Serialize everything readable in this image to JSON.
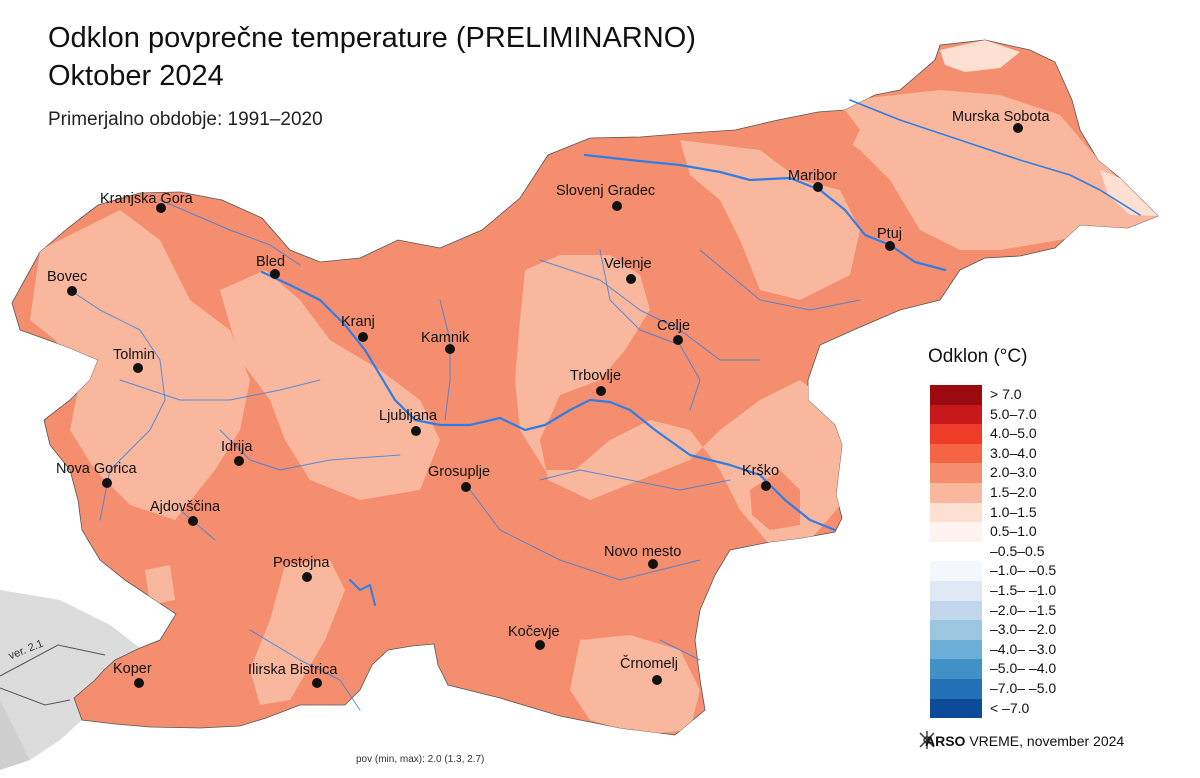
{
  "title": {
    "line1": "Odklon povprečne temperature (PRELIMINARNO)",
    "line2": "Oktober 2024",
    "subtitle": "Primerjalno obdobje: 1991–2020"
  },
  "cities": [
    {
      "name": "Murska Sobota"
    },
    {
      "name": "Maribor"
    },
    {
      "name": "Ptuj"
    },
    {
      "name": "Slovenj Gradec"
    },
    {
      "name": "Velenje"
    },
    {
      "name": "Celje"
    },
    {
      "name": "Trbovlje"
    },
    {
      "name": "Krško"
    },
    {
      "name": "Novo mesto"
    },
    {
      "name": "Črnomelj"
    },
    {
      "name": "Kočevje"
    },
    {
      "name": "Grosuplje"
    },
    {
      "name": "Ljubljana"
    },
    {
      "name": "Kamnik"
    },
    {
      "name": "Kranj"
    },
    {
      "name": "Bled"
    },
    {
      "name": "Kranjska Gora"
    },
    {
      "name": "Bovec"
    },
    {
      "name": "Tolmin"
    },
    {
      "name": "Idrija"
    },
    {
      "name": "Nova Gorica"
    },
    {
      "name": "Ajdovščina"
    },
    {
      "name": "Postojna"
    },
    {
      "name": "Ilirska Bistrica"
    },
    {
      "name": "Koper"
    }
  ],
  "legend": {
    "title": "Odklon (°C)",
    "items": [
      {
        "label": "> 7.0",
        "color": "#9b0a0e"
      },
      {
        "label": "5.0–7.0",
        "color": "#c8181b"
      },
      {
        "label": "4.0–5.0",
        "color": "#ee3b2a"
      },
      {
        "label": "3.0–4.0",
        "color": "#f56444"
      },
      {
        "label": "2.0–3.0",
        "color": "#f58e6e"
      },
      {
        "label": "1.5–2.0",
        "color": "#f9b79d"
      },
      {
        "label": "1.0–1.5",
        "color": "#fde0d2"
      },
      {
        "label": "0.5–1.0",
        "color": "#fef3ee"
      },
      {
        "label": "–0.5–0.5",
        "color": "#ffffff"
      },
      {
        "label": "–1.0– –0.5",
        "color": "#f4f8fd"
      },
      {
        "label": "–1.5– –1.0",
        "color": "#dfe9f6"
      },
      {
        "label": "–2.0– –1.5",
        "color": "#c2d7ee"
      },
      {
        "label": "–3.0– –2.0",
        "color": "#9ac6e0"
      },
      {
        "label": "–4.0– –3.0",
        "color": "#6baed6"
      },
      {
        "label": "–5.0– –4.0",
        "color": "#4190c6"
      },
      {
        "label": "–7.0– –5.0",
        "color": "#2271b5"
      },
      {
        "label": "< –7.0",
        "color": "#0b4b98"
      }
    ]
  },
  "footer": {
    "stats": "pov (min, max): 2.0 (1.3, 2.7)",
    "credit_brand": "ARSO",
    "credit_rest": " VREME, november 2024",
    "version": "ver. 2.1"
  },
  "colors": {
    "dominant": "#f58e6e",
    "lighter": "#f9b79d",
    "lightest": "#fde0d2",
    "river": "#2f7ee6",
    "neighbour": "#d9d9d9"
  }
}
